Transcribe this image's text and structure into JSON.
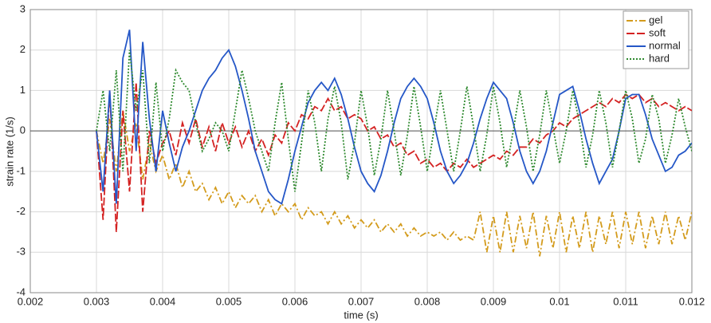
{
  "chart_data": {
    "type": "line",
    "xlabel": "time (s)",
    "ylabel": "strain rate (1/s)",
    "xlim": [
      0.002,
      0.012
    ],
    "ylim": [
      -4,
      3
    ],
    "xticks": [
      0.002,
      0.003,
      0.004,
      0.005,
      0.006,
      0.007,
      0.008,
      0.009,
      0.01,
      0.011,
      0.012
    ],
    "yticks": [
      -4,
      -3,
      -2,
      -1,
      0,
      1,
      2,
      3
    ],
    "grid": true,
    "legend": "upper right",
    "x": [
      0.003,
      0.0031,
      0.0032,
      0.0033,
      0.0034,
      0.0035,
      0.0036,
      0.0037,
      0.0038,
      0.0039,
      0.004,
      0.0041,
      0.0042,
      0.0043,
      0.0044,
      0.0045,
      0.0046,
      0.0047,
      0.0048,
      0.0049,
      0.005,
      0.0051,
      0.0052,
      0.0053,
      0.0054,
      0.0055,
      0.0056,
      0.0057,
      0.0058,
      0.0059,
      0.006,
      0.0061,
      0.0062,
      0.0063,
      0.0064,
      0.0065,
      0.0066,
      0.0067,
      0.0068,
      0.0069,
      0.007,
      0.0071,
      0.0072,
      0.0073,
      0.0074,
      0.0075,
      0.0076,
      0.0077,
      0.0078,
      0.0079,
      0.008,
      0.0081,
      0.0082,
      0.0083,
      0.0084,
      0.0085,
      0.0086,
      0.0087,
      0.0088,
      0.0089,
      0.009,
      0.0091,
      0.0092,
      0.0093,
      0.0094,
      0.0095,
      0.0096,
      0.0097,
      0.0098,
      0.0099,
      0.01,
      0.0101,
      0.0102,
      0.0103,
      0.0104,
      0.0105,
      0.0106,
      0.0107,
      0.0108,
      0.0109,
      0.011,
      0.0111,
      0.0112,
      0.0113,
      0.0114,
      0.0115,
      0.0116,
      0.0117,
      0.0118,
      0.0119,
      0.012
    ],
    "series": [
      {
        "name": "gel",
        "color": "#d39b1c",
        "dash": "8 3 2 3",
        "values": [
          0,
          -0.8,
          0.3,
          -1.0,
          0.5,
          -0.5,
          0.2,
          -1.2,
          -0.3,
          -1.0,
          -0.6,
          -1.2,
          -0.8,
          -1.4,
          -1.0,
          -1.5,
          -1.3,
          -1.7,
          -1.4,
          -1.8,
          -1.5,
          -1.9,
          -1.6,
          -1.8,
          -1.6,
          -2.0,
          -1.7,
          -2.1,
          -1.8,
          -2.0,
          -1.8,
          -2.2,
          -1.9,
          -2.1,
          -2.0,
          -2.3,
          -2.0,
          -2.3,
          -2.1,
          -2.4,
          -2.2,
          -2.4,
          -2.2,
          -2.5,
          -2.3,
          -2.5,
          -2.3,
          -2.6,
          -2.4,
          -2.6,
          -2.5,
          -2.6,
          -2.5,
          -2.7,
          -2.5,
          -2.7,
          -2.6,
          -2.7,
          -2.0,
          -3.0,
          -2.1,
          -3.0,
          -2.0,
          -3.0,
          -2.1,
          -2.9,
          -2.0,
          -3.1,
          -2.1,
          -2.9,
          -2.0,
          -3.0,
          -2.1,
          -2.9,
          -2.0,
          -3.0,
          -2.1,
          -2.8,
          -2.0,
          -2.9,
          -2.0,
          -2.8,
          -2.0,
          -2.9,
          -2.1,
          -2.8,
          -2.0,
          -2.8,
          -2.1,
          -2.7,
          -2.0
        ]
      },
      {
        "name": "soft",
        "color": "#d42222",
        "dash": "10 3",
        "values": [
          0,
          -2.2,
          1.0,
          -2.5,
          0.5,
          -1.5,
          1.2,
          -2.0,
          0.0,
          -0.8,
          -0.3,
          0.0,
          -0.6,
          0.2,
          -0.3,
          0.3,
          -0.4,
          0.1,
          -0.5,
          0.2,
          -0.3,
          0.1,
          -0.4,
          0.0,
          -0.5,
          -0.2,
          -0.6,
          -0.1,
          -0.3,
          0.2,
          0.0,
          0.4,
          0.3,
          0.6,
          0.5,
          0.8,
          0.5,
          0.6,
          0.3,
          0.4,
          0.3,
          0.0,
          0.1,
          -0.2,
          -0.1,
          -0.4,
          -0.3,
          -0.6,
          -0.5,
          -0.8,
          -0.7,
          -0.9,
          -0.8,
          -1.0,
          -0.8,
          -0.9,
          -0.7,
          -0.9,
          -0.8,
          -0.7,
          -0.6,
          -0.7,
          -0.5,
          -0.6,
          -0.4,
          -0.4,
          -0.2,
          -0.3,
          -0.1,
          0.0,
          0.2,
          0.1,
          0.3,
          0.4,
          0.5,
          0.6,
          0.7,
          0.6,
          0.8,
          0.7,
          0.9,
          0.8,
          0.9,
          0.7,
          0.8,
          0.6,
          0.7,
          0.6,
          0.5,
          0.6,
          0.5
        ]
      },
      {
        "name": "normal",
        "color": "#2557c7",
        "dash": "none",
        "values": [
          0,
          -1.5,
          1.0,
          -1.8,
          1.8,
          2.5,
          -0.5,
          2.2,
          0.3,
          -1.0,
          0.5,
          -0.3,
          -1.0,
          -0.4,
          0.0,
          0.5,
          1.0,
          1.3,
          1.5,
          1.8,
          2.0,
          1.6,
          1.0,
          0.3,
          -0.5,
          -1.0,
          -1.5,
          -1.7,
          -1.8,
          -1.2,
          -0.5,
          0.1,
          0.7,
          1.0,
          1.2,
          1.0,
          1.3,
          0.9,
          0.3,
          -0.4,
          -1.0,
          -1.3,
          -1.5,
          -1.1,
          -0.5,
          0.2,
          0.8,
          1.1,
          1.3,
          1.1,
          0.8,
          0.2,
          -0.5,
          -1.0,
          -1.3,
          -1.1,
          -0.8,
          -0.3,
          0.3,
          0.8,
          1.2,
          1.0,
          0.8,
          0.2,
          -0.5,
          -1.0,
          -1.3,
          -1.0,
          -0.5,
          0.2,
          0.9,
          1.0,
          1.1,
          0.5,
          -0.2,
          -0.8,
          -1.3,
          -1.0,
          -0.7,
          0.0,
          0.8,
          0.9,
          0.9,
          0.4,
          -0.2,
          -0.6,
          -1.0,
          -0.9,
          -0.6,
          -0.5,
          -0.3
        ]
      },
      {
        "name": "hard",
        "color": "#2f8a2f",
        "dash": "2 2",
        "values": [
          0,
          1.0,
          -0.5,
          1.5,
          -1.0,
          2.0,
          0.5,
          1.5,
          -0.8,
          1.2,
          -0.5,
          0.3,
          1.5,
          1.2,
          1.0,
          0.2,
          -0.5,
          -0.2,
          0.2,
          0.0,
          -0.5,
          0.5,
          1.5,
          0.8,
          0.0,
          -0.5,
          -1.0,
          0.2,
          1.2,
          -0.2,
          -1.5,
          -0.3,
          1.0,
          0.2,
          -1.0,
          0.3,
          1.1,
          0.2,
          -1.2,
          -0.3,
          1.0,
          0.1,
          -1.1,
          -0.2,
          1.0,
          0.0,
          -1.1,
          -0.1,
          1.1,
          0.1,
          -1.0,
          0.0,
          1.0,
          0.0,
          -1.0,
          0.0,
          1.1,
          0.1,
          -1.0,
          -0.1,
          1.1,
          0.2,
          -0.9,
          0.0,
          1.0,
          0.1,
          -1.0,
          -0.1,
          1.0,
          0.1,
          -0.8,
          0.0,
          1.0,
          0.2,
          -0.9,
          -0.1,
          1.0,
          0.2,
          -0.9,
          0.0,
          1.0,
          0.3,
          -0.8,
          -0.2,
          0.9,
          0.3,
          -0.8,
          -0.1,
          0.8,
          0.1,
          -0.5
        ]
      }
    ]
  }
}
